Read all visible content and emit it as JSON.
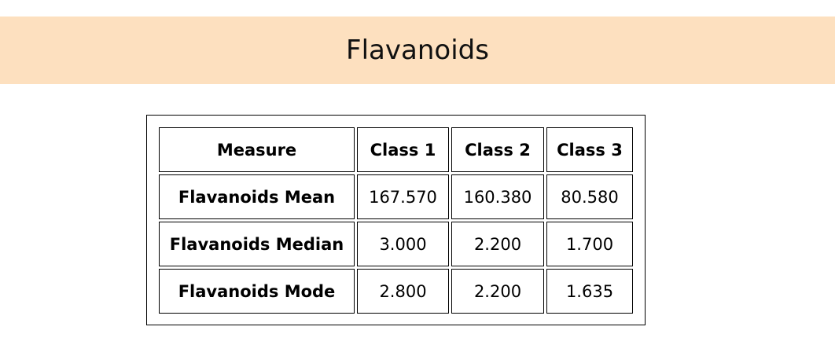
{
  "header": {
    "title": "Flavanoids"
  },
  "table": {
    "columns": [
      "Measure",
      "Class 1",
      "Class 2",
      "Class 3"
    ],
    "rows": [
      [
        "Flavanoids Mean",
        "167.570",
        "160.380",
        "80.580"
      ],
      [
        "Flavanoids Median",
        "3.000",
        "2.200",
        "1.700"
      ],
      [
        "Flavanoids Mode",
        "2.800",
        "2.200",
        "1.635"
      ]
    ]
  },
  "colors": {
    "banner_background": "#fde0bf",
    "border": "#000000"
  }
}
